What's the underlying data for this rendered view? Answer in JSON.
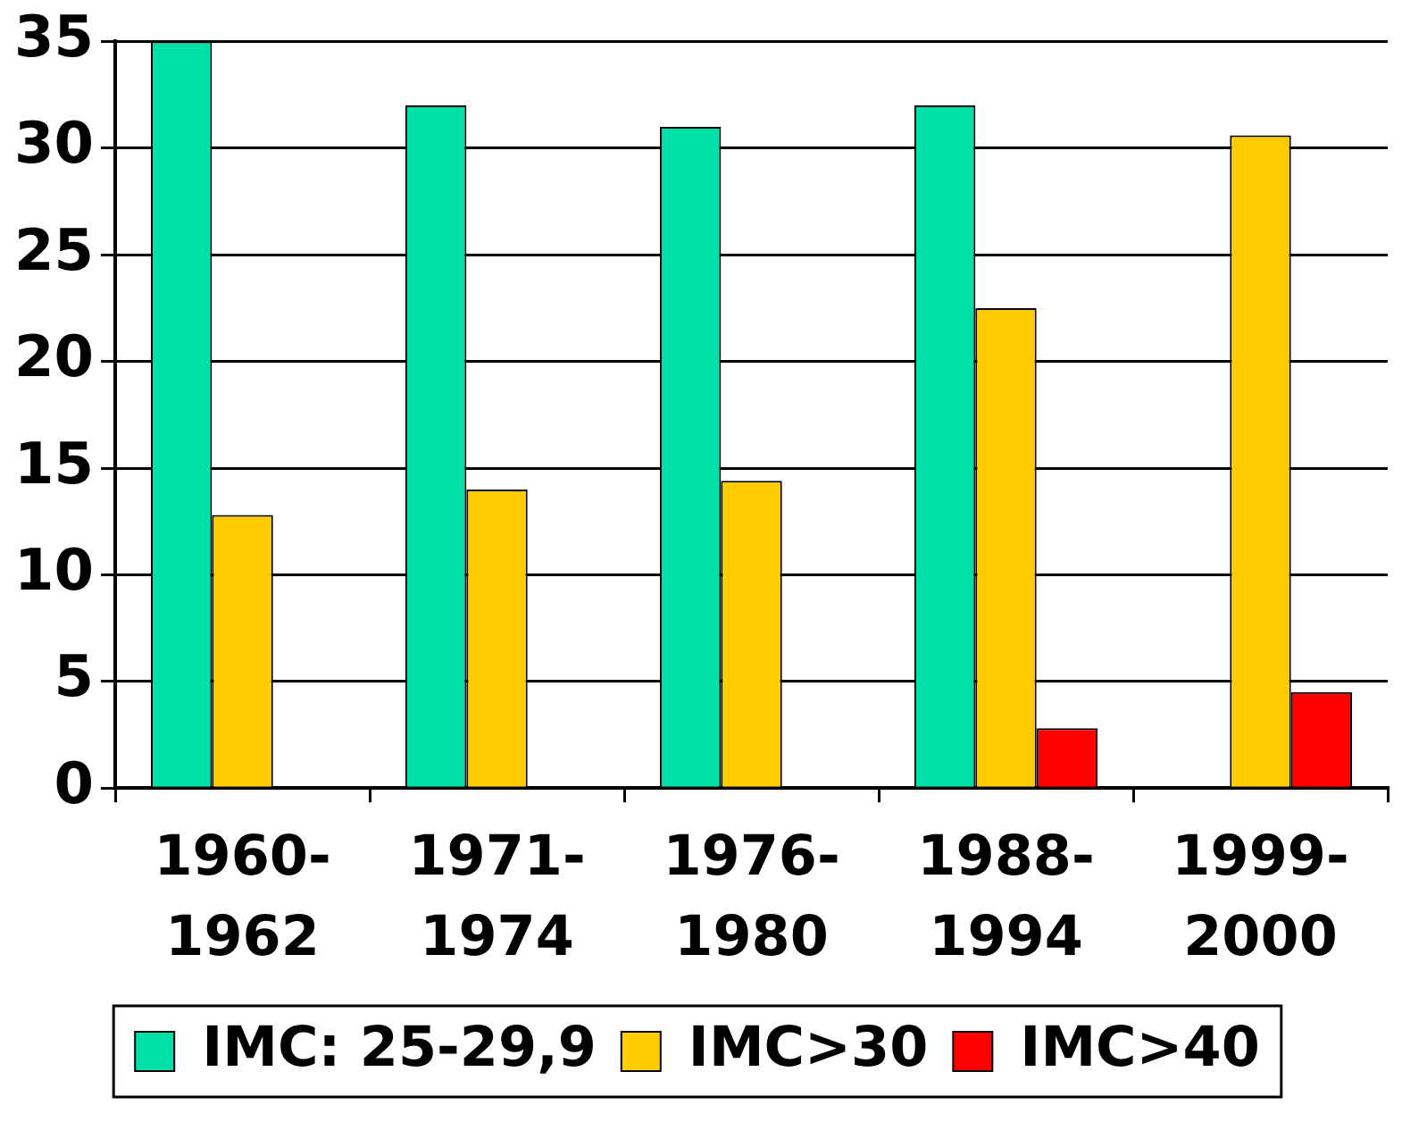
{
  "chart_data": {
    "type": "bar",
    "categories": [
      "1960-1962",
      "1971-1974",
      "1976-1980",
      "1988-1994",
      "1999-2000"
    ],
    "series": [
      {
        "name": "IMC: 25-29,9",
        "color": "#00e0a8",
        "values": [
          35,
          32,
          31,
          32,
          null
        ]
      },
      {
        "name": "IMC>30",
        "color": "#ffcc00",
        "values": [
          12.8,
          14,
          14.4,
          22.5,
          30.6
        ]
      },
      {
        "name": "IMC>40",
        "color": "#ff0000",
        "values": [
          null,
          null,
          null,
          2.8,
          4.5
        ]
      }
    ],
    "ylim": [
      0,
      35
    ],
    "yticks": [
      0,
      5,
      10,
      15,
      20,
      25,
      30,
      35
    ],
    "grid": "y",
    "legend": "bottom"
  }
}
